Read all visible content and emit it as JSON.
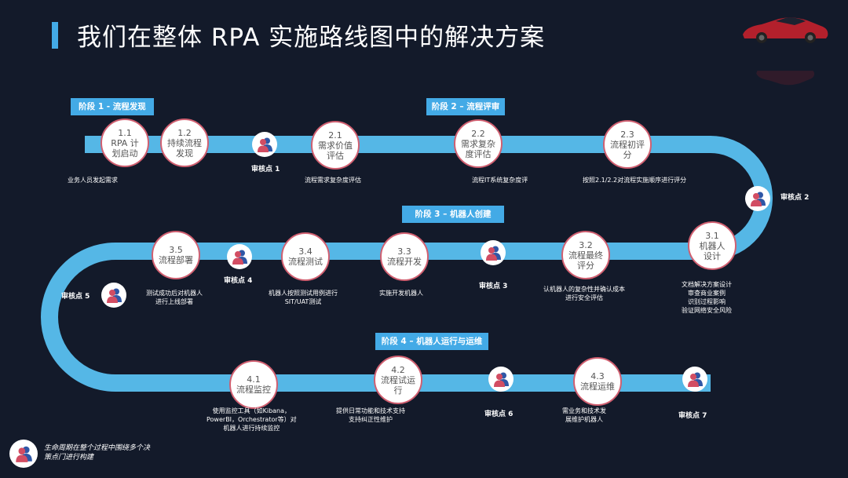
{
  "header": {
    "title": "我们在整体 RPA 实施路线图中的解决方案"
  },
  "colors": {
    "road": "#55b7e6",
    "stage_bg": "#43aae6",
    "node_border": "#d05f70",
    "background": "#131a2a",
    "person_front": "#d24d63",
    "person_back": "#2f57a6"
  },
  "stages": [
    {
      "label": "阶段 1 - 流程发现"
    },
    {
      "label": "阶段 2 – 流程评审"
    },
    {
      "label": "阶段 3 – 机器人创建"
    },
    {
      "label": "阶段 4 – 机器人运行与运维"
    }
  ],
  "nodes": [
    {
      "label": "1.1\nRPA 计\n划启动"
    },
    {
      "label": "1.2\n持续流程\n发现"
    },
    {
      "label": "2.1\n需求价值\n评估"
    },
    {
      "label": "2.2\n需求复杂\n度评估"
    },
    {
      "label": "2.3\n流程初评\n分"
    },
    {
      "label": "3.1\n机器人\n设计"
    },
    {
      "label": "3.2\n流程最终\n评分"
    },
    {
      "label": "3.3\n流程开发"
    },
    {
      "label": "3.4\n流程测试"
    },
    {
      "label": "3.5\n流程部署"
    },
    {
      "label": "4.1\n流程监控"
    },
    {
      "label": "4.2\n流程试运\n行"
    },
    {
      "label": "4.3\n流程运维"
    }
  ],
  "checkpoints": [
    {
      "label": "审核点 1",
      "icon": "person-group-icon"
    },
    {
      "label": "审核点 2",
      "icon": "person-group-icon"
    },
    {
      "label": "审核点 3",
      "icon": "person-group-icon"
    },
    {
      "label": "审核点 4",
      "icon": "person-group-icon"
    },
    {
      "label": "审核点 5",
      "icon": "person-group-icon"
    },
    {
      "label": "审核点 6",
      "icon": "person-group-icon"
    },
    {
      "label": "审核点 7",
      "icon": "person-group-icon"
    }
  ],
  "descriptions": [
    {
      "text": "业务人员发起需求"
    },
    {
      "text": "流程需求复杂度评估"
    },
    {
      "text": "流程IT系统复杂度评"
    },
    {
      "text": "按照2.1/2.2对流程实施顺序进行评分"
    },
    {
      "text": "文档解决方案设计\n审查商业案例\n识别过程影响\n验证网络安全风险"
    },
    {
      "text": "认机器人的复杂性并确认成本\n进行安全评估"
    },
    {
      "text": "实施开发机器人"
    },
    {
      "text": "机器人按照测试用例进行\nSIT/UAT测试"
    },
    {
      "text": "测试成功后对机器人\n进行上线部署"
    },
    {
      "text": "使用监控工具（如Kibana，\nPowerBI，Orchestrator等）对\n机器人进行持续监控"
    },
    {
      "text": "提供日常功能和技术支持\n支持纠正性维护"
    },
    {
      "text": "需业务和技术发\n展维护机器人"
    }
  ],
  "footer": {
    "text": "生命周期在整个过程中围绕多个决\n策点门进行构建"
  }
}
